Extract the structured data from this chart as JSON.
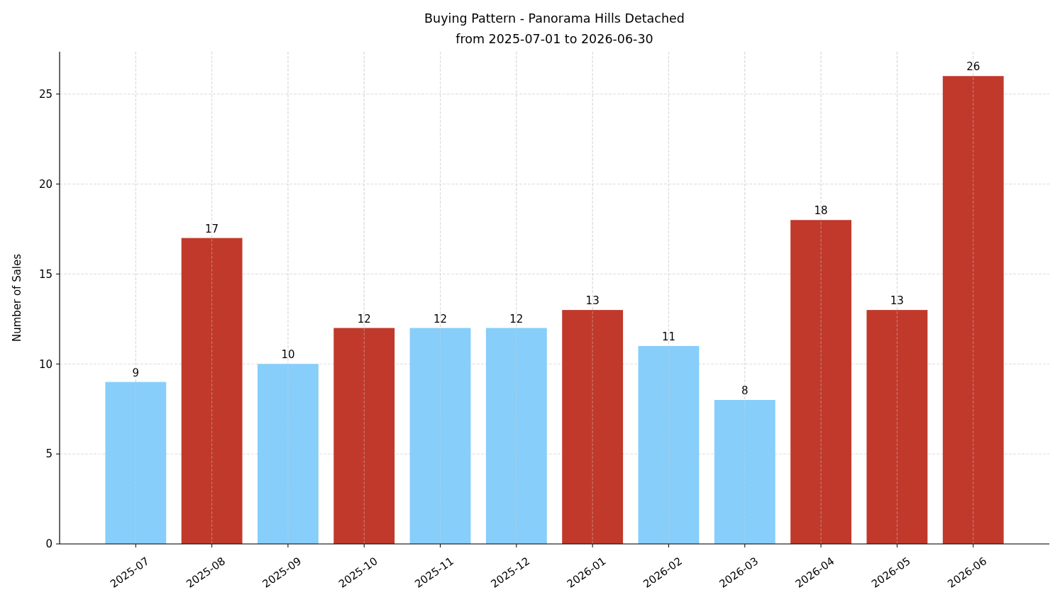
{
  "chart_data": {
    "type": "bar",
    "title": "Buying Pattern - Panorama Hills Detached",
    "subtitle": "from 2025-07-01 to 2026-06-30",
    "ylabel": "Number of Sales",
    "categories": [
      "2025-07",
      "2025-08",
      "2025-09",
      "2025-10",
      "2025-11",
      "2025-12",
      "2026-01",
      "2026-02",
      "2026-03",
      "2026-04",
      "2026-05",
      "2026-06"
    ],
    "values": [
      9,
      17,
      10,
      12,
      12,
      12,
      13,
      11,
      8,
      18,
      13,
      26
    ],
    "colors": [
      "#87cefa",
      "#c0392b",
      "#87cefa",
      "#c0392b",
      "#87cefa",
      "#87cefa",
      "#c0392b",
      "#87cefa",
      "#87cefa",
      "#c0392b",
      "#c0392b",
      "#c0392b"
    ],
    "ylim": [
      0,
      27.35
    ],
    "yticks": [
      0,
      5,
      10,
      15,
      20,
      25
    ],
    "grid": true,
    "data_labels": true
  }
}
